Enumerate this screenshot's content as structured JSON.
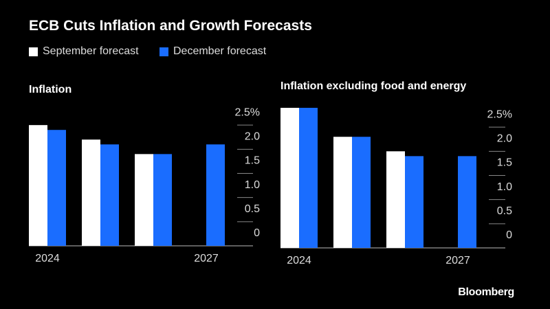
{
  "title": "ECB Cuts Inflation and Growth Forecasts",
  "source": "Bloomberg",
  "chart_data": [
    {
      "type": "bar",
      "title": "Inflation",
      "categories": [
        "2024",
        null,
        null,
        "2027"
      ],
      "series": [
        {
          "name": "September forecast",
          "color": "#ffffff",
          "values": [
            2.5,
            2.2,
            1.9,
            null
          ]
        },
        {
          "name": "December forecast",
          "color": "#1a6dff",
          "values": [
            2.4,
            2.1,
            1.9,
            2.1
          ]
        }
      ],
      "ylim": [
        0,
        3
      ],
      "yticks": [
        0,
        0.5,
        {
          "value": 1,
          "label": "1.0"
        },
        1.5,
        {
          "value": 2,
          "label": "2.0"
        },
        {
          "value": 2.5,
          "label": "2.5%"
        }
      ]
    },
    {
      "type": "bar",
      "title": "Inflation excluding food and energy",
      "categories": [
        "2024",
        null,
        null,
        "2027"
      ],
      "series": [
        {
          "color": "#ffffff",
          "values": [
            2.9,
            2.3,
            2.0,
            null
          ]
        },
        {
          "color": "#1a6dff",
          "values": [
            2.9,
            2.3,
            1.9,
            1.9
          ]
        }
      ],
      "ylim": [
        0,
        3
      ],
      "yticks": [
        0,
        0.5,
        {
          "value": 1,
          "label": "1.0"
        },
        1.5,
        {
          "value": 2,
          "label": "2.0"
        },
        {
          "value": 2.5,
          "label": "2.5%"
        }
      ]
    }
  ]
}
